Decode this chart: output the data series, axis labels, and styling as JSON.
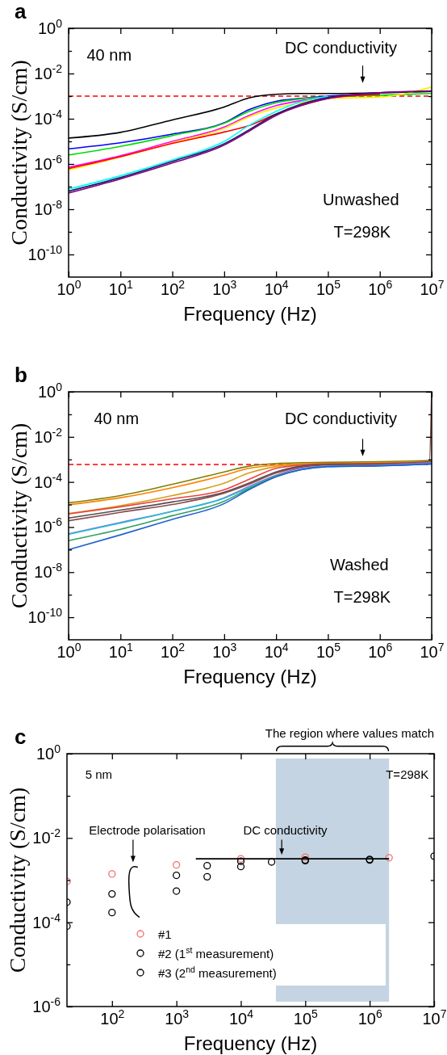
{
  "chart_data": [
    {
      "type": "line",
      "title": "a",
      "xlabel": "Frequency (Hz)",
      "ylabel": "Conductivity (S/cm)",
      "log": "xy",
      "xlim": [
        1,
        10000000
      ],
      "ylim": [
        1e-11,
        1
      ],
      "xticks": [
        {
          "value": 1,
          "label": "10$^{0}$"
        },
        {
          "value": 10,
          "label": "10$^{1}$"
        },
        {
          "value": 100,
          "label": "10$^{2}$"
        },
        {
          "value": 1000,
          "label": "10$^{3}$"
        },
        {
          "value": 10000,
          "label": "10$^{4}$"
        },
        {
          "value": 100000,
          "label": "10$^{5}$"
        },
        {
          "value": 1000000,
          "label": "10$^{6}$"
        },
        {
          "value": 10000000,
          "label": "10$^{7}$"
        }
      ],
      "yticks": [
        {
          "value": 1,
          "label": "10$^{0}$"
        },
        {
          "value": 0.1,
          "label": null
        },
        {
          "value": 0.01,
          "label": "10$^{-2}$"
        },
        {
          "value": 0.001,
          "label": null
        },
        {
          "value": 0.0001,
          "label": "10$^{-4}$"
        },
        {
          "value": 1e-05,
          "label": null
        },
        {
          "value": 1e-06,
          "label": "10$^{-6}$"
        },
        {
          "value": 1e-07,
          "label": null
        },
        {
          "value": 1e-08,
          "label": "10$^{-8}$"
        },
        {
          "value": 1e-09,
          "label": null
        },
        {
          "value": 1e-10,
          "label": "10$^{-10}$"
        }
      ],
      "x": [
        1,
        10,
        100,
        1000,
        3000,
        10000,
        30000,
        100000,
        1000000,
        10000000
      ],
      "series": [
        {
          "color": "#000000",
          "values": [
            1.4e-05,
            2.5e-05,
            8.9e-05,
            0.00033,
            0.00083,
            0.0012,
            0.0013,
            0.0013,
            0.0014,
            0.0016
          ]
        },
        {
          "color": "#0000ff",
          "values": [
            4.7e-06,
            8.7e-06,
            2.1e-05,
            6.6e-05,
            0.00025,
            0.00059,
            0.00079,
            0.001,
            0.0012,
            null
          ]
        },
        {
          "color": "#00dd00",
          "values": [
            2.5e-06,
            6e-06,
            1.8e-05,
            6.3e-05,
            0.00021,
            0.00051,
            0.00076,
            0.00091,
            0.0011,
            0.0013
          ]
        },
        {
          "color": "#ff00ff",
          "values": [
            7.2e-07,
            2.3e-06,
            1e-05,
            4.3e-05,
            0.00014,
            0.00038,
            0.00063,
            0.00091,
            null,
            null
          ]
        },
        {
          "color": "#ffee00",
          "values": [
            5.4e-07,
            2e-06,
            8.7e-06,
            3.7e-05,
            0.00012,
            0.0003,
            0.00052,
            0.00079,
            0.00091,
            0.0025
          ]
        },
        {
          "color": "#ff0000",
          "values": [
            6.3e-07,
            2.1e-06,
            8.1e-06,
            2.6e-05,
            5e-05,
            0.00016,
            0.00038,
            0.00079,
            0.0012,
            null
          ]
        },
        {
          "color": "#00ffff",
          "values": [
            7.8e-08,
            3e-07,
            1.5e-06,
            1e-05,
            5e-05,
            0.00021,
            0.00056,
            0.00098,
            null,
            null
          ]
        },
        {
          "color": "#1a1a60",
          "values": [
            6.3e-08,
            2.5e-07,
            1.3e-06,
            7.9e-06,
            3.2e-05,
            0.00016,
            0.00044,
            0.00087,
            0.0014,
            0.0016
          ]
        },
        {
          "color": "#800080",
          "values": [
            5.2e-08,
            2.2e-07,
            1.1e-06,
            6.9e-06,
            2.8e-05,
            0.00014,
            0.00038,
            0.00079,
            0.0014,
            0.0017
          ]
        }
      ],
      "ref_lines": [
        {
          "axis": "y",
          "value": 0.001,
          "color": "#ff0000",
          "line_style": "dashed"
        }
      ],
      "annotations": [
        "40 nm",
        "DC conductivity",
        "Unwashed",
        "T=298K"
      ]
    },
    {
      "type": "line",
      "title": "b",
      "xlabel": "Frequency (Hz)",
      "ylabel": "Conductivity (S/cm)",
      "log": "xy",
      "xlim": [
        1,
        10000000
      ],
      "ylim": [
        1e-11,
        1
      ],
      "xticks": [
        {
          "value": 1,
          "label": "10$^{0}$"
        },
        {
          "value": 10,
          "label": "10$^{1}$"
        },
        {
          "value": 100,
          "label": "10$^{2}$"
        },
        {
          "value": 1000,
          "label": "10$^{3}$"
        },
        {
          "value": 10000,
          "label": "10$^{4}$"
        },
        {
          "value": 100000,
          "label": "10$^{5}$"
        },
        {
          "value": 1000000,
          "label": "10$^{6}$"
        },
        {
          "value": 10000000,
          "label": "10$^{7}$"
        }
      ],
      "yticks": [
        {
          "value": 1,
          "label": "10$^{0}$"
        },
        {
          "value": 0.1,
          "label": null
        },
        {
          "value": 0.01,
          "label": "10$^{-2}$"
        },
        {
          "value": 0.001,
          "label": null
        },
        {
          "value": 0.0001,
          "label": "10$^{-4}$"
        },
        {
          "value": 1e-05,
          "label": null
        },
        {
          "value": 1e-06,
          "label": "10$^{-6}$"
        },
        {
          "value": 1e-07,
          "label": null
        },
        {
          "value": 1e-08,
          "label": "10$^{-8}$"
        },
        {
          "value": 1e-09,
          "label": null
        },
        {
          "value": 1e-10,
          "label": "10$^{-10}$"
        }
      ],
      "x": [
        1,
        10,
        100,
        1000,
        3000,
        10000,
        30000,
        100000,
        1000000,
        10000000
      ],
      "series": [
        {
          "color": "#808000",
          "values": [
            1.2e-05,
            2.5e-05,
            7.9e-05,
            0.00028,
            0.0005,
            0.00066,
            0.00071,
            0.00074,
            0.00079,
            0.00089
          ]
        },
        {
          "color": "#ff7f00",
          "values": [
            9.8e-06,
            2e-05,
            5.6e-05,
            0.0002,
            0.0004,
            0.00056,
            0.00063,
            0.00066,
            0.00071,
            0.00079
          ]
        },
        {
          "color": "#d4a017",
          "values": [
            4e-06,
            8.9e-06,
            2.5e-05,
            8.9e-05,
            0.00025,
            0.00048,
            0.0006,
            0.00063,
            0.00066,
            0.00079
          ]
        },
        {
          "color": "#f04040",
          "values": [
            3.8e-06,
            7.9e-06,
            1.8e-05,
            4.5e-05,
            0.00013,
            0.0004,
            0.00056,
            0.00063,
            0.00066,
            0.00076
          ]
        },
        {
          "color": "#505050",
          "values": [
            2.5e-06,
            5.6e-06,
            1.3e-05,
            3.5e-05,
            8.9e-05,
            0.00028,
            0.0005,
            0.0006,
            0.00063,
            0.00076
          ]
        },
        {
          "color": "#8b4a4a",
          "x": [
            1,
            10,
            100,
            1000,
            3000,
            10000,
            30000,
            100000,
            1000000,
            9000000,
            10000000
          ],
          "values": [
            1.9e-06,
            4.5e-06,
            1e-05,
            3.2e-05,
            7.9e-05,
            0.00025,
            0.00045,
            0.00056,
            0.0006,
            0.00076,
            1
          ]
        },
        {
          "color": "#9370db",
          "values": [
            5e-07,
            1.6e-06,
            5e-06,
            2e-05,
            6.3e-05,
            0.0002,
            0.0004,
            0.0005,
            0.00056,
            0.00071
          ]
        },
        {
          "color": "#20c0d0",
          "values": [
            4.8e-07,
            1.5e-06,
            5e-06,
            1.9e-05,
            5.6e-05,
            0.00018,
            0.00035,
            0.00048,
            0.00052,
            0.00063
          ]
        },
        {
          "color": "#30a060",
          "values": [
            2.5e-07,
            7.9e-07,
            3.2e-06,
            1.4e-05,
            5e-05,
            0.00018,
            0.00035,
            null,
            null,
            null
          ]
        },
        {
          "color": "#2060d0",
          "values": [
            1e-07,
            4.5e-07,
            2.2e-06,
            1.1e-05,
            4.5e-05,
            0.00017,
            0.00035,
            0.00048,
            0.00052,
            0.00063
          ]
        }
      ],
      "ref_lines": [
        {
          "axis": "y",
          "value": 0.0006,
          "color": "#ff0000",
          "line_style": "dashed"
        }
      ],
      "annotations": [
        "40 nm",
        "DC conductivity",
        "Washed",
        "T=298K"
      ]
    },
    {
      "type": "scatter",
      "title": "c",
      "xlabel": "Frequency (Hz)",
      "ylabel": "Conductivity (S/cm)",
      "log": "xy",
      "xlim": [
        20,
        10000000
      ],
      "ylim": [
        1e-06,
        1
      ],
      "marker": "circle",
      "legend": "bottom",
      "xticks": [
        {
          "value": 100,
          "label": "10$^{2}$"
        },
        {
          "value": 1000,
          "label": "10$^{3}$"
        },
        {
          "value": 10000,
          "label": "10$^{4}$"
        },
        {
          "value": 100000,
          "label": "10$^{5}$"
        },
        {
          "value": 1000000,
          "label": "10$^{6}$"
        },
        {
          "value": 10000000,
          "label": "10$^{7}$"
        }
      ],
      "yticks": [
        {
          "value": 1,
          "label": "10$^{0}$"
        },
        {
          "value": 0.1,
          "label": null
        },
        {
          "value": 0.01,
          "label": "10$^{-2}$"
        },
        {
          "value": 0.001,
          "label": null
        },
        {
          "value": 0.0001,
          "label": "10$^{-4}$"
        },
        {
          "value": 1e-05,
          "label": null
        },
        {
          "value": 1e-06,
          "label": "10$^{-6}$"
        }
      ],
      "series": [
        {
          "name": "#1",
          "color": "#f07070",
          "x": [
            20,
            100,
            1000,
            10000,
            100000,
            2000000
          ],
          "values": [
            0.00093,
            0.0014,
            0.0023,
            0.0032,
            0.0035,
            0.0034
          ]
        },
        {
          "name": "#2 (1$^{st}$ measurement)",
          "color": "#000000",
          "x": [
            20,
            100,
            1000,
            3000,
            10000,
            100000,
            1000000
          ],
          "values": [
            0.0003,
            0.00047,
            0.0013,
            0.0022,
            0.0028,
            0.003,
            0.0031
          ]
        },
        {
          "name": "#3 (2$^{nd}$ measurement)",
          "color": "#000000",
          "x": [
            20,
            100,
            1000,
            3000,
            10000,
            30000,
            100000,
            1000000,
            10000000
          ],
          "values": [
            8.1e-05,
            0.00017,
            0.00055,
            0.0012,
            0.0021,
            0.0027,
            0.0029,
            0.003,
            0.0037
          ]
        },
        {
          "type": "line",
          "marker": "none",
          "color": "#000000",
          "x": [
            2000,
            2000000
          ],
          "values": [
            0.0032,
            0.0032
          ]
        }
      ],
      "bands": [
        {
          "axis": "x",
          "from": 35000,
          "to": 2000000,
          "label": "The region where values match",
          "color": "#c5d4e2"
        }
      ],
      "annotations": [
        "5 nm",
        "T=298K",
        "Electrode polarisation",
        "DC conductivity"
      ]
    }
  ]
}
